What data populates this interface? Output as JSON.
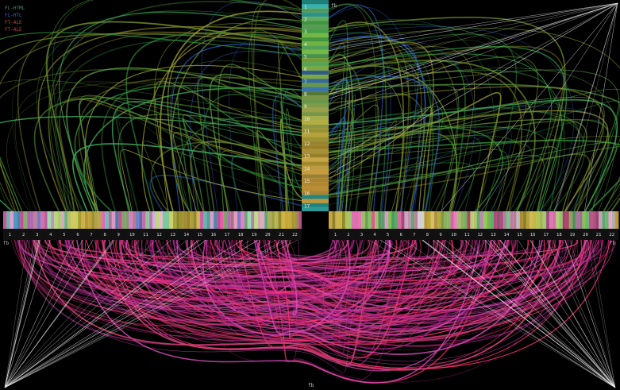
{
  "legend": [
    {
      "label": "FL-HTML",
      "color": "#4a8a6a"
    },
    {
      "label": "FL-HTL",
      "color": "#3a6ab0"
    },
    {
      "label": "FT-ALE",
      "color": "#b05030"
    },
    {
      "label": "FT-ALE",
      "color": "#c04040"
    }
  ],
  "vertical_axis": {
    "ticks": [
      "1",
      "2",
      "3",
      "4",
      "5",
      "6",
      "7",
      "8",
      "9",
      "10",
      "11",
      "12",
      "13",
      "14",
      "15",
      "16",
      "17"
    ],
    "colors": [
      "#2aa8a0",
      "#37b5b0",
      "#6ab86a",
      "#4aa84a",
      "#7ac24a",
      "#5ab060",
      "#8ab540",
      "#3c7ab8",
      "#6a9a4a",
      "#8aa850",
      "#a8b050",
      "#b8b040",
      "#c0a840",
      "#b89a30",
      "#c8a848",
      "#d0a040",
      "#c89838"
    ]
  },
  "horizontal_axis_left": {
    "ticks": [
      "1",
      "2",
      "3",
      "4",
      "5",
      "6",
      "7",
      "8",
      "9",
      "10",
      "11",
      "12",
      "13",
      "14",
      "15",
      "16",
      "17",
      "18",
      "19",
      "20",
      "21",
      "22"
    ],
    "colors": [
      "#f070c0",
      "#70c8c0",
      "#e8a0d0",
      "#60b0e0",
      "#f060b0",
      "#b0d890",
      "#d080d0",
      "#f0a0c0",
      "#8090e0",
      "#f080c8",
      "#a0e0b0",
      "#e0b0e0",
      "#c0e080",
      "#f0c0d0",
      "#80d0a0",
      "#e0e070",
      "#d0d060",
      "#c8c040",
      "#e0c050",
      "#d8b840",
      "#c0b040",
      "#e0c860"
    ]
  },
  "horizontal_axis_right": {
    "ticks": [
      "1",
      "2",
      "3",
      "4",
      "5",
      "6",
      "7",
      "8",
      "9",
      "10",
      "11",
      "12",
      "13",
      "14",
      "15",
      "16",
      "17",
      "18",
      "19",
      "20",
      "21",
      "22"
    ],
    "colors": [
      "#d0a840",
      "#c0b040",
      "#e0c060",
      "#c8c040",
      "#b8c860",
      "#a0d070",
      "#e070b0",
      "#f080c0",
      "#c0e080",
      "#90d070",
      "#e06090",
      "#d0e080",
      "#70c080",
      "#e0a0d0",
      "#a0d860",
      "#60c070",
      "#f070b0",
      "#c06090",
      "#e0b0d0",
      "#80d890",
      "#f0a0c8",
      "#d0d0d0"
    ]
  },
  "corner_labels": {
    "top_right": "fb",
    "left_mid": "fb",
    "right_mid": "fb"
  },
  "bottom_label": "fb",
  "colors": {
    "background": "#000000",
    "upper_links": [
      "#2f8a3a",
      "#3fa85a",
      "#5aa040",
      "#2a60c0",
      "#a0a030",
      "#6a8a2a"
    ],
    "lower_links": [
      "#c03aa0",
      "#e050c0",
      "#a02080",
      "#d04070",
      "#ff3070"
    ],
    "crossing_lines": "#f0f0f0"
  }
}
